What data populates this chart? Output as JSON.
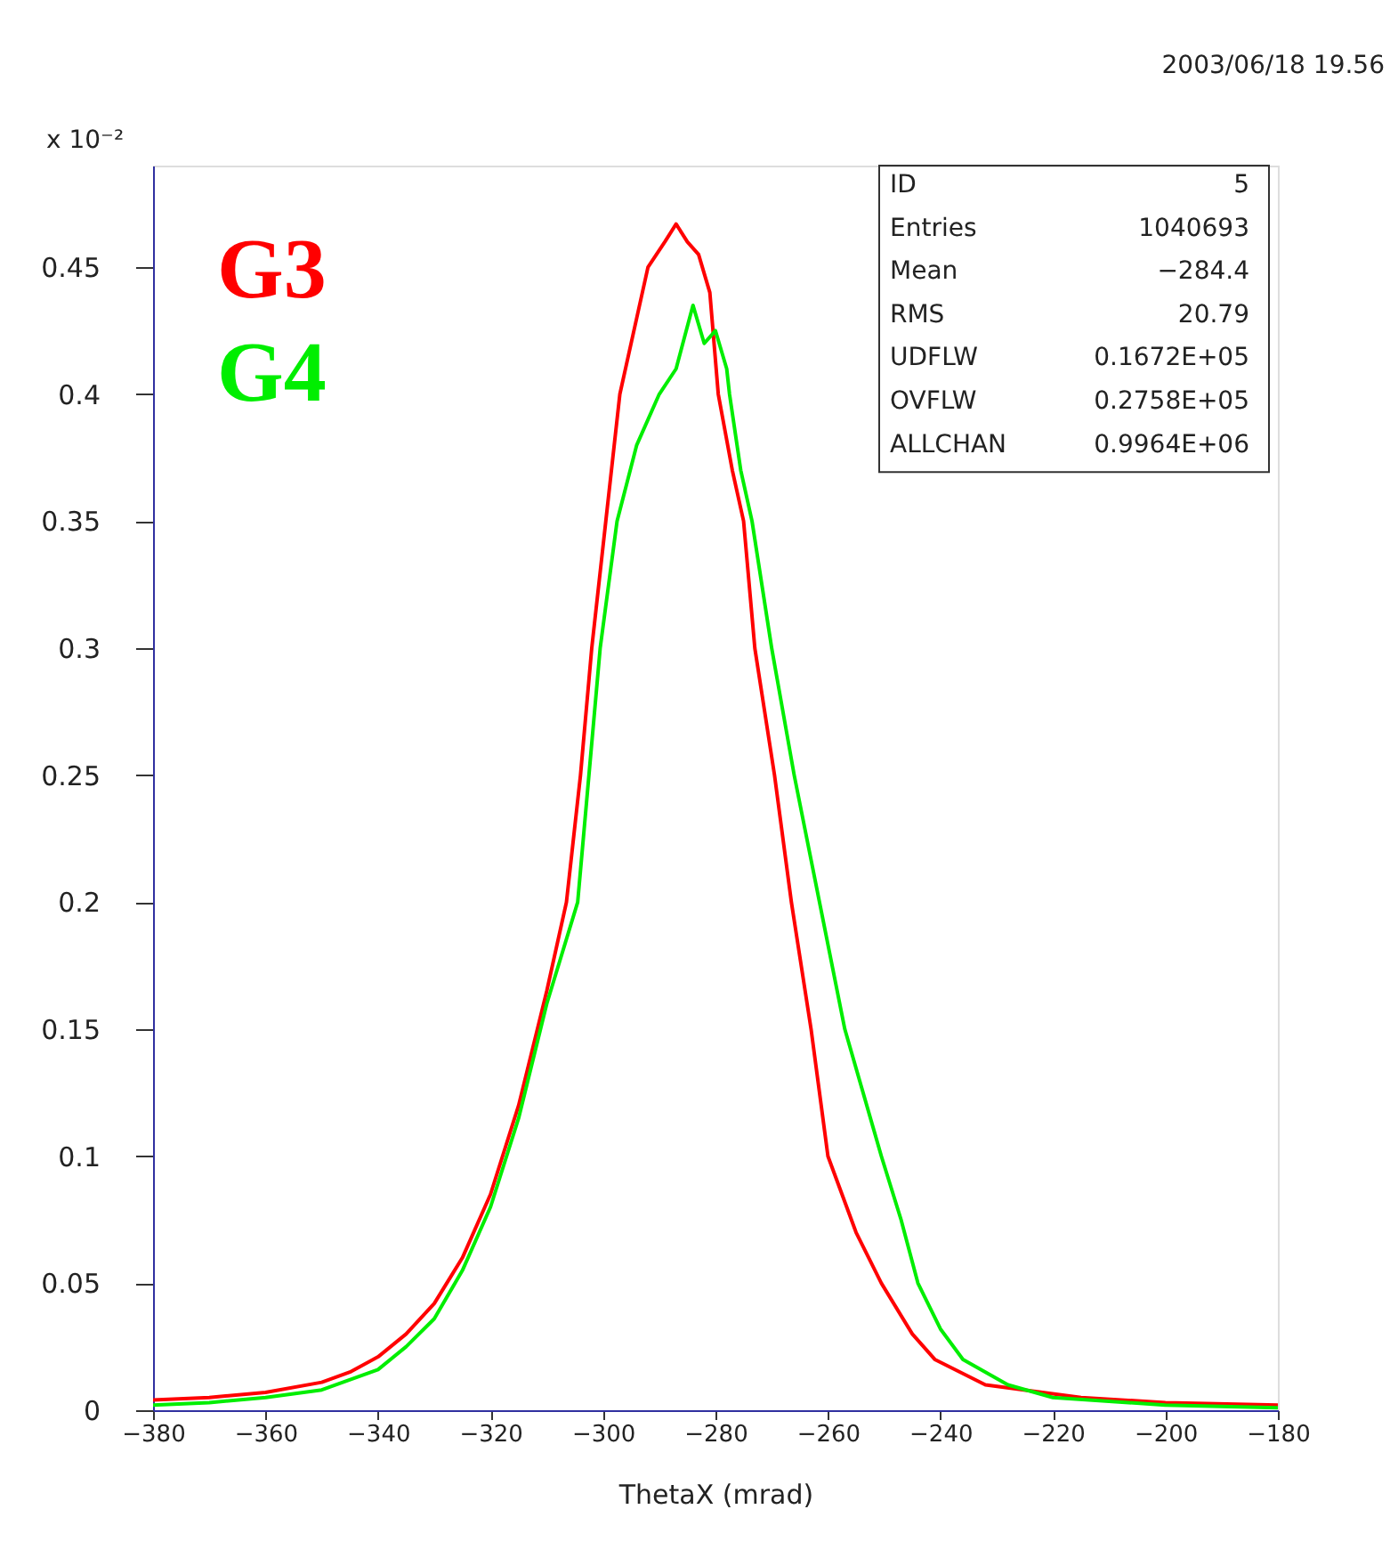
{
  "chart_data": {
    "type": "line",
    "xlabel": "ThetaX (mrad)",
    "xlim": [
      -380,
      -180
    ],
    "xticks": [
      -380,
      -360,
      -340,
      -320,
      -300,
      -280,
      -260,
      -240,
      -220,
      -200,
      -180
    ],
    "ylim": [
      0,
      0.49
    ],
    "yticks": [
      0,
      0.05,
      0.1,
      0.15,
      0.2,
      0.25,
      0.3,
      0.35,
      0.4,
      0.45
    ],
    "grid": false,
    "legend": "top left",
    "marker": "none",
    "line_style": "solid",
    "annotations": [
      "2003/06/18  19.56",
      "x 10⁻²",
      "ID 5",
      "Entries 1040693",
      "Mean −284.4",
      "RMS 20.79",
      "UDFLW 0.1672E+05",
      "OVFLW 0.2758E+05",
      "ALLCHAN 0.9964E+06"
    ],
    "series": [
      {
        "name": "G3",
        "color": "#ff0000",
        "x": [
          -380,
          -370,
          -360,
          -350,
          -345,
          -340,
          -335,
          -330,
          -325,
          -320,
          -315,
          -310,
          -306.5,
          -304,
          -302,
          -299.5,
          -297,
          -294,
          -292,
          -289,
          -287,
          -285,
          -283,
          -281,
          -279.5,
          -277,
          -275,
          -273,
          -269.5,
          -266.5,
          -263,
          -260,
          -255,
          -250.5,
          -245,
          -241,
          -232,
          -215,
          -200,
          -180
        ],
        "values": [
          0.004,
          0.005,
          0.007,
          0.011,
          0.015,
          0.021,
          0.03,
          0.042,
          0.06,
          0.085,
          0.12,
          0.165,
          0.2,
          0.25,
          0.3,
          0.35,
          0.4,
          0.43,
          0.45,
          0.46,
          0.467,
          0.46,
          0.455,
          0.44,
          0.4,
          0.37,
          0.35,
          0.3,
          0.25,
          0.2,
          0.15,
          0.1,
          0.07,
          0.05,
          0.03,
          0.02,
          0.01,
          0.005,
          0.003,
          0.002
        ]
      },
      {
        "name": "G4",
        "color": "#00ee00",
        "x": [
          -380,
          -370,
          -360,
          -350,
          -340,
          -335,
          -330,
          -325,
          -320,
          -315,
          -310,
          -304.5,
          -302.5,
          -300.5,
          -297.5,
          -294,
          -290,
          -287,
          -284,
          -282,
          -280,
          -278,
          -277.5,
          -275.5,
          -273.5,
          -270,
          -266,
          -261.5,
          -257,
          -250.5,
          -247,
          -244,
          -240,
          -236,
          -228,
          -220,
          -200,
          -180
        ],
        "values": [
          0.002,
          0.003,
          0.005,
          0.008,
          0.016,
          0.025,
          0.036,
          0.055,
          0.08,
          0.115,
          0.16,
          0.2,
          0.25,
          0.3,
          0.35,
          0.38,
          0.4,
          0.41,
          0.435,
          0.42,
          0.425,
          0.41,
          0.4,
          0.37,
          0.35,
          0.3,
          0.25,
          0.2,
          0.15,
          0.1,
          0.075,
          0.05,
          0.032,
          0.02,
          0.01,
          0.005,
          0.002,
          0.001
        ]
      }
    ]
  }
}
